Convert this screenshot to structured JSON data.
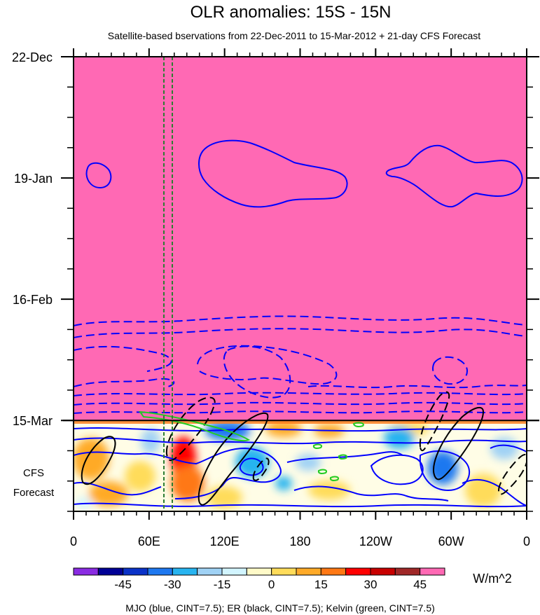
{
  "chart_data": {
    "type": "heatmap",
    "title": "OLR anomalies: 15S - 15N",
    "subtitle": "Satellite-based bservations from 22-Dec-2011 to 15-Mar-2012 + 21-day CFS Forecast",
    "x_ticks": [
      {
        "lon": 0,
        "label": "0"
      },
      {
        "lon": 60,
        "label": "60E"
      },
      {
        "lon": 120,
        "label": "120E"
      },
      {
        "lon": 180,
        "label": "180"
      },
      {
        "lon": 240,
        "label": "120W"
      },
      {
        "lon": 300,
        "label": "60W"
      },
      {
        "lon": 360,
        "label": "0"
      }
    ],
    "xlim": [
      0,
      360
    ],
    "time_range_days": [
      0,
      105
    ],
    "y_ticks": [
      {
        "day": 0,
        "label": "22-Dec"
      },
      {
        "day": 28,
        "label": "19-Jan"
      },
      {
        "day": 56,
        "label": "16-Feb"
      },
      {
        "day": 84,
        "label": "15-Mar"
      }
    ],
    "observation_end_day": 84,
    "forecast_label": [
      "CFS",
      "Forecast"
    ],
    "colorbar": {
      "units": "W/m^2",
      "tick_labels": [
        "-45",
        "-30",
        "-15",
        "0",
        "15",
        "30",
        "45"
      ],
      "colors": [
        "#8a2be2",
        "#000096",
        "#0a32c8",
        "#1e78f0",
        "#28b4f0",
        "#a0d2f5",
        "#d2f5ff",
        "#fffac8",
        "#ffdc5a",
        "#ffaa28",
        "#ff7814",
        "#ff0000",
        "#c80000",
        "#a02828",
        "#ff69b4"
      ]
    },
    "fill_color_observation": "#ff69b4",
    "contours": {
      "mjo_color": "#0000ff",
      "er_color": "#000000",
      "kelvin_color": "#22cc22",
      "reference_line_color": "#2e7d32"
    },
    "footer": "MJO (blue, CINT=7.5); ER (black, CINT=7.5); Kelvin (green, CINT=7.5)"
  }
}
